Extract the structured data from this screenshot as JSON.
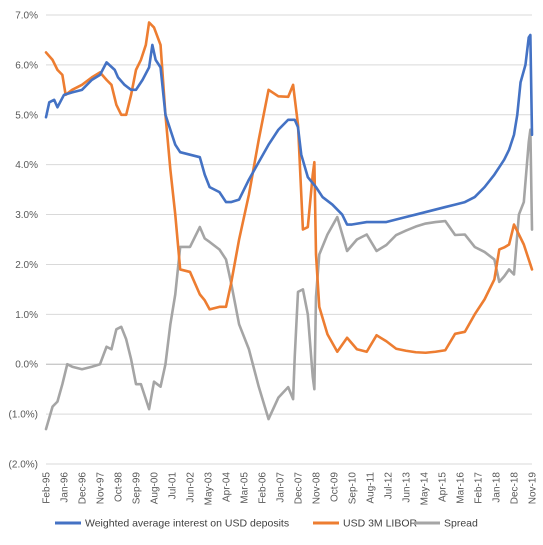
{
  "chart_data": {
    "type": "line",
    "title": "",
    "xlabel": "",
    "ylabel": "",
    "ylim": [
      -0.02,
      0.07
    ],
    "y_tick_labels": [
      "(2.0%)",
      "(1.0%)",
      "0.0%",
      "1.0%",
      "2.0%",
      "3.0%",
      "4.0%",
      "5.0%",
      "6.0%",
      "7.0%"
    ],
    "y_ticks": [
      -0.02,
      -0.01,
      0.0,
      0.01,
      0.02,
      0.03,
      0.04,
      0.05,
      0.06,
      0.07
    ],
    "x_tick_labels": [
      "Feb-95",
      "Jan-96",
      "Dec-96",
      "Nov-97",
      "Oct-98",
      "Sep-99",
      "Aug-00",
      "Jul-01",
      "Jun-02",
      "May-03",
      "Apr-04",
      "Mar-05",
      "Feb-06",
      "Jan-07",
      "Dec-07",
      "Nov-08",
      "Oct-09",
      "Sep-10",
      "Aug-11",
      "Jul-12",
      "Jun-13",
      "May-14",
      "Apr-15",
      "Mar-16",
      "Feb-17",
      "Jan-18",
      "Dec-18",
      "Nov-19"
    ],
    "x_range": [
      "Feb-95",
      "Nov-19"
    ],
    "grid": "horizontal",
    "legend_position": "bottom",
    "colors": {
      "weighted": "#4472C4",
      "libor": "#ED7D31",
      "spread": "#A5A5A5",
      "grid": "#D9D9D9",
      "axis": "#BFBFBF"
    },
    "series": [
      {
        "name": "Weighted average interest on USD deposits",
        "color": "#4472C4",
        "points": [
          [
            "1995-02",
            0.0495
          ],
          [
            "1995-04",
            0.0525
          ],
          [
            "1995-07",
            0.053
          ],
          [
            "1995-09",
            0.0515
          ],
          [
            "1996-01",
            0.054
          ],
          [
            "1996-06",
            0.0545
          ],
          [
            "1996-12",
            0.055
          ],
          [
            "1997-06",
            0.057
          ],
          [
            "1997-11",
            0.058
          ],
          [
            "1998-03",
            0.0605
          ],
          [
            "1998-08",
            0.059
          ],
          [
            "1998-10",
            0.0575
          ],
          [
            "1999-02",
            0.056
          ],
          [
            "1999-06",
            0.055
          ],
          [
            "1999-09",
            0.055
          ],
          [
            "2000-01",
            0.057
          ],
          [
            "2000-05",
            0.0595
          ],
          [
            "2000-07",
            0.064
          ],
          [
            "2000-09",
            0.061
          ],
          [
            "2000-12",
            0.0595
          ],
          [
            "2001-03",
            0.05
          ],
          [
            "2001-06",
            0.047
          ],
          [
            "2001-09",
            0.044
          ],
          [
            "2001-12",
            0.0425
          ],
          [
            "2002-06",
            0.042
          ],
          [
            "2002-12",
            0.0415
          ],
          [
            "2003-03",
            0.038
          ],
          [
            "2003-06",
            0.0355
          ],
          [
            "2003-12",
            0.0345
          ],
          [
            "2004-04",
            0.0325
          ],
          [
            "2004-07",
            0.0325
          ],
          [
            "2004-12",
            0.033
          ],
          [
            "2005-03",
            0.035
          ],
          [
            "2005-06",
            0.037
          ],
          [
            "2005-12",
            0.0405
          ],
          [
            "2006-06",
            0.044
          ],
          [
            "2006-12",
            0.047
          ],
          [
            "2007-06",
            0.049
          ],
          [
            "2007-10",
            0.049
          ],
          [
            "2007-12",
            0.0475
          ],
          [
            "2008-02",
            0.042
          ],
          [
            "2008-06",
            0.0375
          ],
          [
            "2008-11",
            0.0355
          ],
          [
            "2009-03",
            0.0335
          ],
          [
            "2009-09",
            0.032
          ],
          [
            "2010-03",
            0.03
          ],
          [
            "2010-06",
            0.028
          ],
          [
            "2010-09",
            0.028
          ],
          [
            "2011-06",
            0.0285
          ],
          [
            "2011-12",
            0.0285
          ],
          [
            "2012-06",
            0.0285
          ],
          [
            "2012-12",
            0.029
          ],
          [
            "2013-06",
            0.0295
          ],
          [
            "2013-12",
            0.03
          ],
          [
            "2014-06",
            0.0305
          ],
          [
            "2014-12",
            0.031
          ],
          [
            "2015-06",
            0.0315
          ],
          [
            "2015-12",
            0.032
          ],
          [
            "2016-06",
            0.0325
          ],
          [
            "2016-12",
            0.0335
          ],
          [
            "2017-06",
            0.0355
          ],
          [
            "2017-12",
            0.038
          ],
          [
            "2018-03",
            0.0395
          ],
          [
            "2018-06",
            0.041
          ],
          [
            "2018-09",
            0.043
          ],
          [
            "2018-12",
            0.046
          ],
          [
            "2019-02",
            0.05
          ],
          [
            "2019-04",
            0.0565
          ],
          [
            "2019-07",
            0.06
          ],
          [
            "2019-09",
            0.0655
          ],
          [
            "2019-10",
            0.066
          ],
          [
            "2019-11",
            0.046
          ]
        ]
      },
      {
        "name": "USD 3M LIBOR",
        "color": "#ED7D31",
        "points": [
          [
            "1995-02",
            0.0625
          ],
          [
            "1995-06",
            0.061
          ],
          [
            "1995-09",
            0.059
          ],
          [
            "1995-12",
            0.058
          ],
          [
            "1996-02",
            0.054
          ],
          [
            "1996-06",
            0.055
          ],
          [
            "1996-12",
            0.056
          ],
          [
            "1997-06",
            0.0575
          ],
          [
            "1997-11",
            0.0585
          ],
          [
            "1998-03",
            0.057
          ],
          [
            "1998-06",
            0.056
          ],
          [
            "1998-09",
            0.052
          ],
          [
            "1998-12",
            0.05
          ],
          [
            "1999-03",
            0.05
          ],
          [
            "1999-06",
            0.054
          ],
          [
            "1999-09",
            0.059
          ],
          [
            "1999-12",
            0.061
          ],
          [
            "2000-03",
            0.064
          ],
          [
            "2000-05",
            0.0685
          ],
          [
            "2000-08",
            0.0675
          ],
          [
            "2000-12",
            0.064
          ],
          [
            "2001-03",
            0.05
          ],
          [
            "2001-06",
            0.039
          ],
          [
            "2001-09",
            0.03
          ],
          [
            "2001-12",
            0.019
          ],
          [
            "2002-06",
            0.0185
          ],
          [
            "2002-12",
            0.014
          ],
          [
            "2003-03",
            0.0128
          ],
          [
            "2003-06",
            0.011
          ],
          [
            "2003-12",
            0.0115
          ],
          [
            "2004-04",
            0.0115
          ],
          [
            "2004-07",
            0.016
          ],
          [
            "2004-12",
            0.025
          ],
          [
            "2005-06",
            0.034
          ],
          [
            "2005-12",
            0.045
          ],
          [
            "2006-06",
            0.055
          ],
          [
            "2006-12",
            0.0537
          ],
          [
            "2007-06",
            0.0536
          ],
          [
            "2007-09",
            0.056
          ],
          [
            "2007-12",
            0.048
          ],
          [
            "2008-03",
            0.027
          ],
          [
            "2008-06",
            0.0275
          ],
          [
            "2008-09",
            0.038
          ],
          [
            "2008-10",
            0.0405
          ],
          [
            "2008-11",
            0.022
          ],
          [
            "2009-01",
            0.0115
          ],
          [
            "2009-06",
            0.006
          ],
          [
            "2009-12",
            0.0025
          ],
          [
            "2010-06",
            0.0053
          ],
          [
            "2010-12",
            0.003
          ],
          [
            "2011-06",
            0.0025
          ],
          [
            "2011-12",
            0.0058
          ],
          [
            "2012-06",
            0.0046
          ],
          [
            "2012-12",
            0.0031
          ],
          [
            "2013-06",
            0.0027
          ],
          [
            "2013-12",
            0.0024
          ],
          [
            "2014-06",
            0.0023
          ],
          [
            "2014-12",
            0.0025
          ],
          [
            "2015-06",
            0.0028
          ],
          [
            "2015-12",
            0.0061
          ],
          [
            "2016-06",
            0.0065
          ],
          [
            "2016-12",
            0.01
          ],
          [
            "2017-06",
            0.013
          ],
          [
            "2017-12",
            0.017
          ],
          [
            "2018-03",
            0.023
          ],
          [
            "2018-06",
            0.0234
          ],
          [
            "2018-09",
            0.024
          ],
          [
            "2018-12",
            0.028
          ],
          [
            "2019-03",
            0.026
          ],
          [
            "2019-06",
            0.024
          ],
          [
            "2019-09",
            0.021
          ],
          [
            "2019-11",
            0.019
          ]
        ]
      },
      {
        "name": "Spread",
        "color": "#A5A5A5",
        "points": [
          [
            "1995-02",
            -0.013
          ],
          [
            "1995-06",
            -0.0085
          ],
          [
            "1995-09",
            -0.0075
          ],
          [
            "1995-12",
            -0.004
          ],
          [
            "1996-03",
            0.0
          ],
          [
            "1996-06",
            -0.0005
          ],
          [
            "1996-12",
            -0.001
          ],
          [
            "1997-06",
            -0.0005
          ],
          [
            "1997-11",
            0.0
          ],
          [
            "1998-03",
            0.0035
          ],
          [
            "1998-06",
            0.003
          ],
          [
            "1998-09",
            0.007
          ],
          [
            "1998-12",
            0.0075
          ],
          [
            "1999-03",
            0.005
          ],
          [
            "1999-06",
            0.001
          ],
          [
            "1999-09",
            -0.004
          ],
          [
            "1999-12",
            -0.004
          ],
          [
            "2000-03",
            -0.007
          ],
          [
            "2000-05",
            -0.009
          ],
          [
            "2000-08",
            -0.0035
          ],
          [
            "2000-12",
            -0.0045
          ],
          [
            "2001-03",
            0.0
          ],
          [
            "2001-06",
            0.008
          ],
          [
            "2001-09",
            0.014
          ],
          [
            "2001-12",
            0.0235
          ],
          [
            "2002-06",
            0.0235
          ],
          [
            "2002-12",
            0.0275
          ],
          [
            "2003-03",
            0.0252
          ],
          [
            "2003-06",
            0.0245
          ],
          [
            "2003-12",
            0.023
          ],
          [
            "2004-04",
            0.021
          ],
          [
            "2004-07",
            0.0165
          ],
          [
            "2004-12",
            0.008
          ],
          [
            "2005-06",
            0.003
          ],
          [
            "2005-12",
            -0.0045
          ],
          [
            "2006-06",
            -0.011
          ],
          [
            "2006-12",
            -0.0067
          ],
          [
            "2007-06",
            -0.0046
          ],
          [
            "2007-09",
            -0.007
          ],
          [
            "2007-10",
            0.0015
          ],
          [
            "2007-12",
            0.0145
          ],
          [
            "2008-03",
            0.015
          ],
          [
            "2008-06",
            0.01
          ],
          [
            "2008-09",
            -0.0025
          ],
          [
            "2008-10",
            -0.005
          ],
          [
            "2008-11",
            0.0135
          ],
          [
            "2009-01",
            0.022
          ],
          [
            "2009-06",
            0.026
          ],
          [
            "2009-12",
            0.0295
          ],
          [
            "2010-06",
            0.0227
          ],
          [
            "2010-12",
            0.025
          ],
          [
            "2011-06",
            0.026
          ],
          [
            "2011-12",
            0.0227
          ],
          [
            "2012-06",
            0.0239
          ],
          [
            "2012-12",
            0.0259
          ],
          [
            "2013-06",
            0.0268
          ],
          [
            "2013-12",
            0.0276
          ],
          [
            "2014-06",
            0.0282
          ],
          [
            "2014-12",
            0.0285
          ],
          [
            "2015-06",
            0.0287
          ],
          [
            "2015-12",
            0.0259
          ],
          [
            "2016-06",
            0.026
          ],
          [
            "2016-12",
            0.0235
          ],
          [
            "2017-06",
            0.0225
          ],
          [
            "2017-12",
            0.021
          ],
          [
            "2018-03",
            0.0165
          ],
          [
            "2018-06",
            0.0176
          ],
          [
            "2018-09",
            0.019
          ],
          [
            "2018-12",
            0.018
          ],
          [
            "2019-03",
            0.03
          ],
          [
            "2019-06",
            0.0325
          ],
          [
            "2019-09",
            0.0445
          ],
          [
            "2019-10",
            0.047
          ],
          [
            "2019-11",
            0.027
          ]
        ]
      }
    ]
  }
}
